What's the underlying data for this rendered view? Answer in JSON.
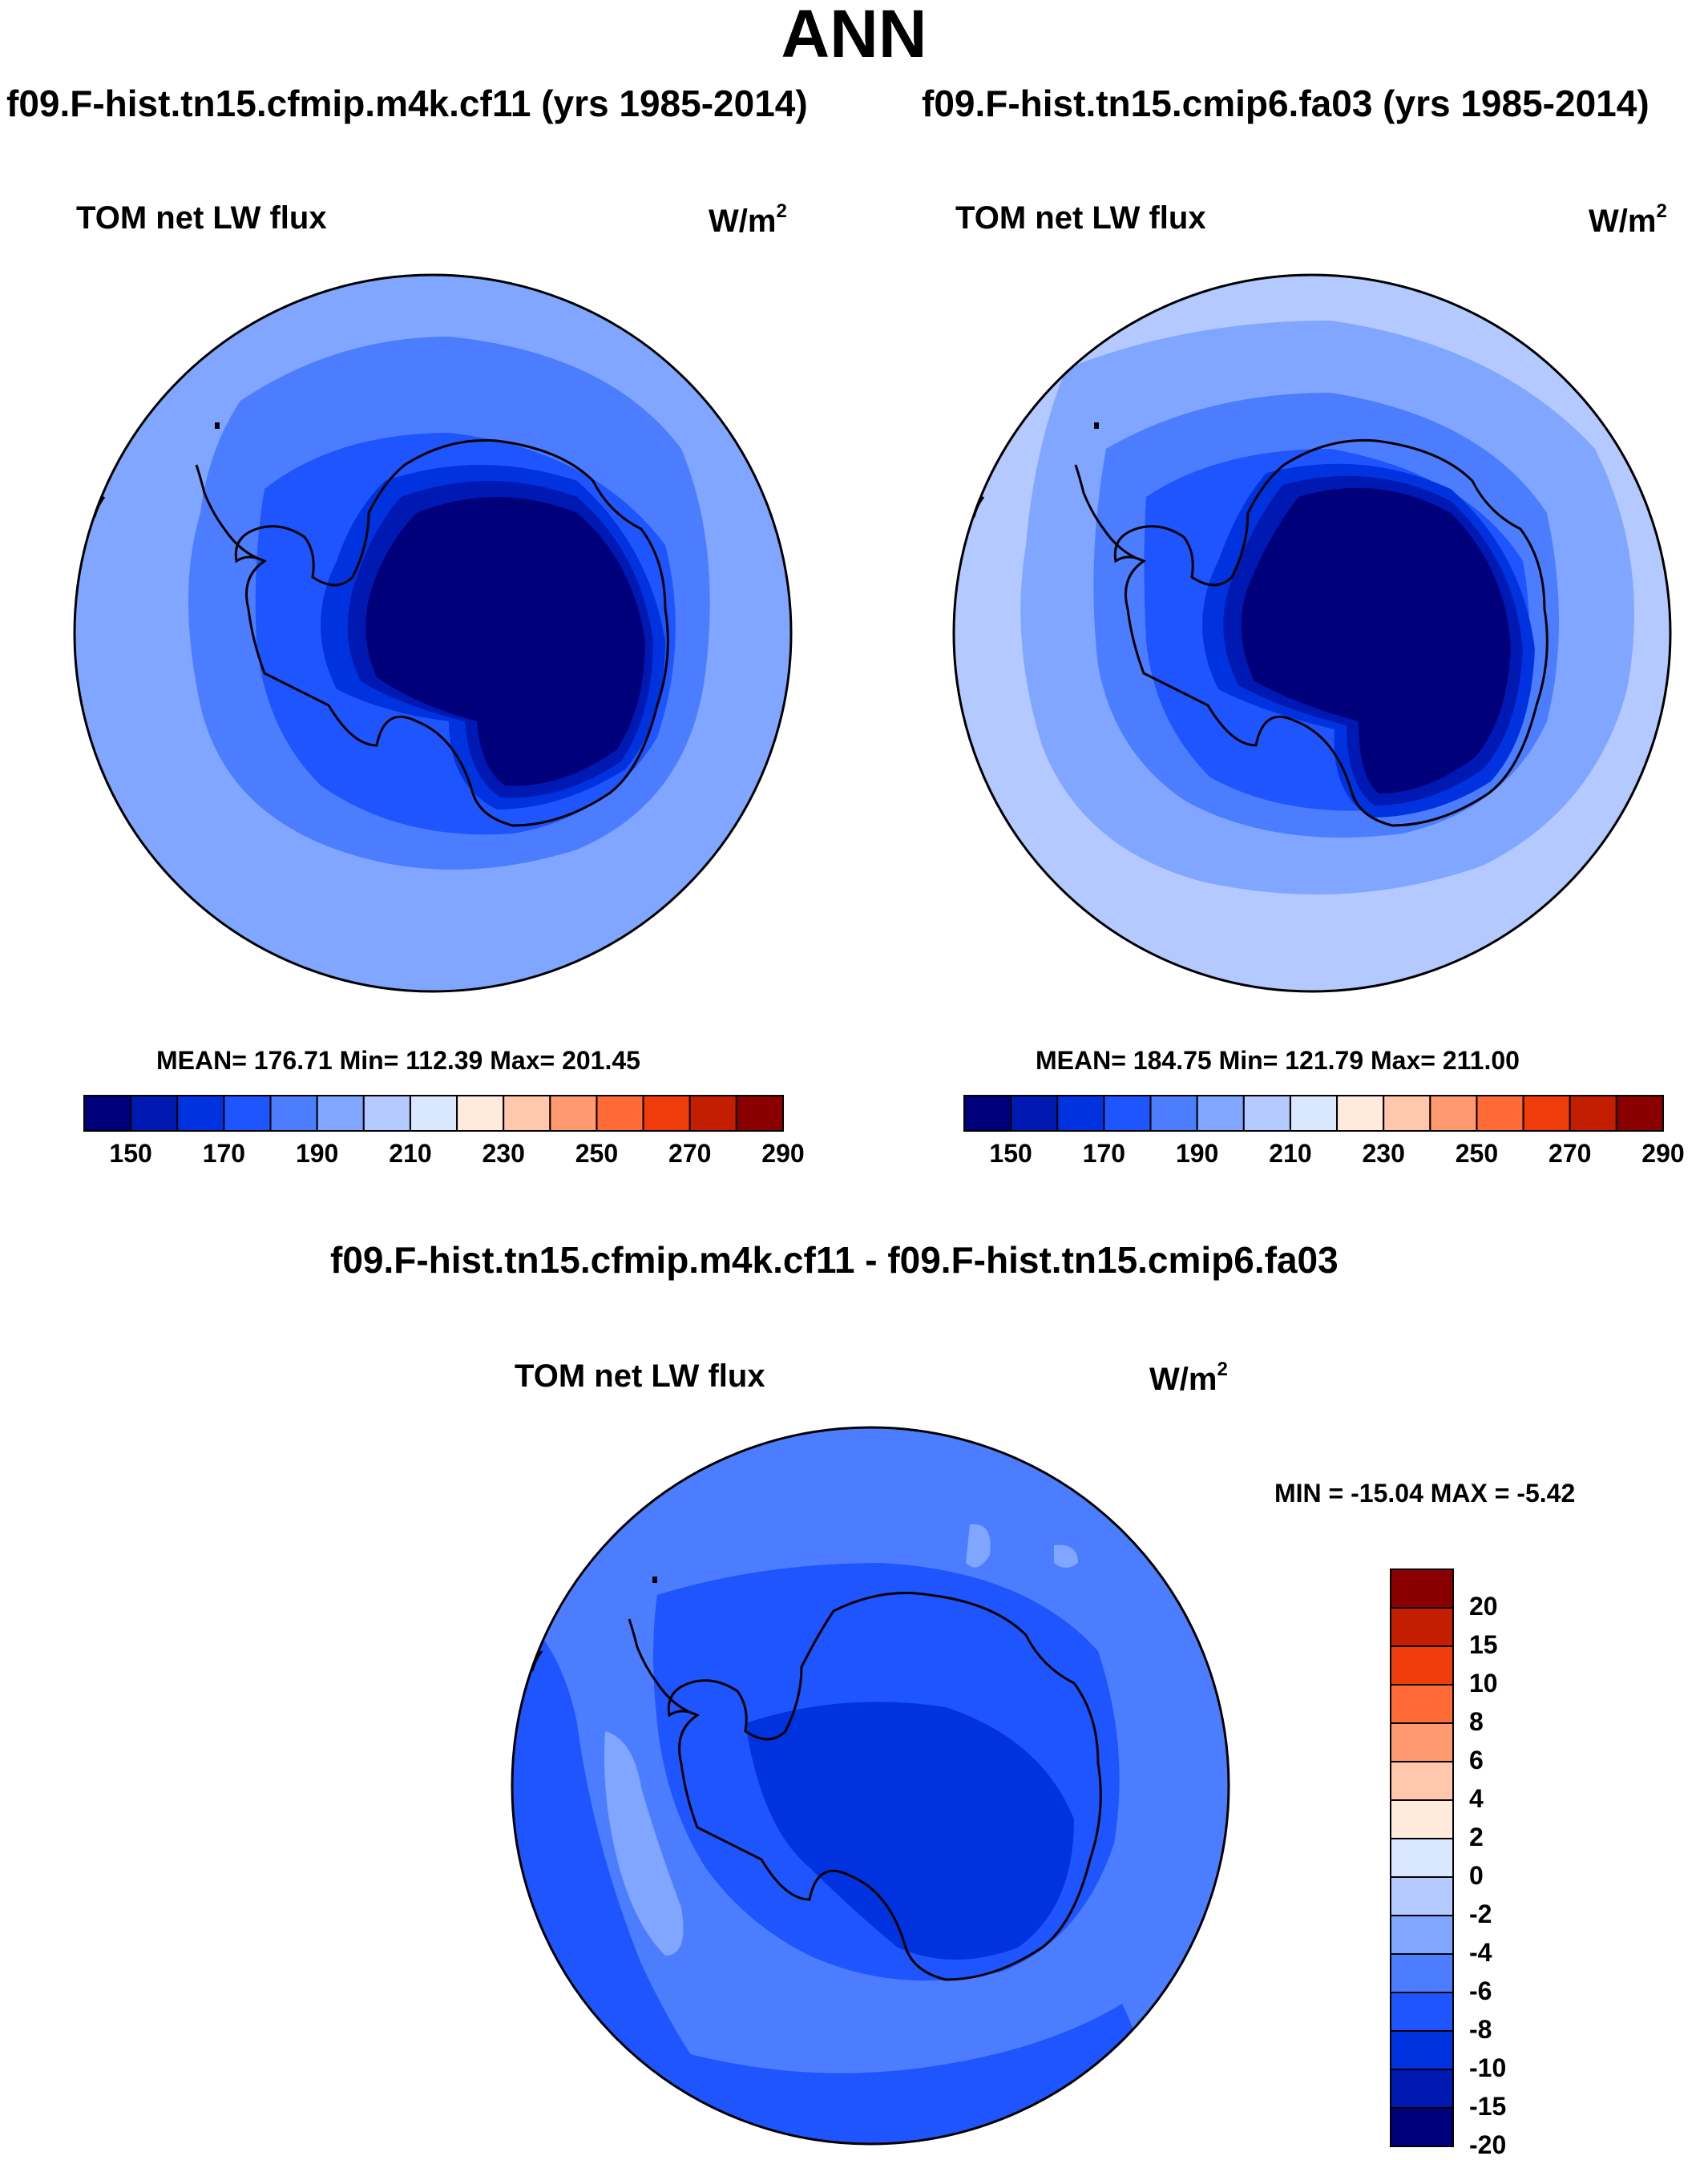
{
  "season": "ANN",
  "variable": "TOM net LW flux",
  "units": "W/m",
  "units_exp": "2",
  "panels": [
    {
      "case_title": "f09.F-hist.tn15.cfmip.m4k.cf11 (yrs 1985-2014)",
      "stats": "MEAN= 176.71  Min= 112.39  Max= 201.45"
    },
    {
      "case_title": "f09.F-hist.tn15.cmip6.fa03 (yrs 1985-2014)",
      "stats": "MEAN= 184.75  Min= 121.79  Max= 211.00"
    }
  ],
  "diff_panel": {
    "title": "f09.F-hist.tn15.cfmip.m4k.cf11 - f09.F-hist.tn15.cmip6.fa03",
    "stats": "MIN = -15.04 MAX =  -5.42"
  },
  "colorbar": {
    "colors": [
      "#00007a",
      "#0019b3",
      "#0033e0",
      "#1f55ff",
      "#4d7dff",
      "#80a6ff",
      "#b3c9ff",
      "#d9e8ff",
      "#ffeadb",
      "#ffc8ad",
      "#ff9a70",
      "#ff6a36",
      "#f03c0a",
      "#c41e02",
      "#8a0000"
    ],
    "tick_labels": [
      "150",
      "170",
      "190",
      "210",
      "230",
      "250",
      "270",
      "290"
    ]
  },
  "diff_colorbar": {
    "colors": [
      "#8a0000",
      "#c41e02",
      "#f03c0a",
      "#ff6a36",
      "#ff9a70",
      "#ffc8ad",
      "#ffeadb",
      "#d9e8ff",
      "#b3c9ff",
      "#80a6ff",
      "#4d7dff",
      "#1f55ff",
      "#0033e0",
      "#0019b3",
      "#00007a"
    ],
    "tick_labels": [
      "20",
      "15",
      "10",
      "8",
      "6",
      "4",
      "2",
      "0",
      "-2",
      "-4",
      "-6",
      "-8",
      "-10",
      "-15",
      "-20"
    ]
  },
  "chart_data": [
    {
      "type": "heatmap",
      "projection": "south-polar-stereographic",
      "title": "TOM net LW flux",
      "subtitle": "f09.F-hist.tn15.cfmip.m4k.cf11 (yrs 1985-2014)",
      "units": "W/m^2",
      "mean": 176.71,
      "min": 112.39,
      "max": 201.45,
      "contour_levels": [
        150,
        160,
        170,
        180,
        190,
        200,
        210,
        220,
        230,
        240,
        250,
        260,
        270,
        280,
        290
      ]
    },
    {
      "type": "heatmap",
      "projection": "south-polar-stereographic",
      "title": "TOM net LW flux",
      "subtitle": "f09.F-hist.tn15.cmip6.fa03 (yrs 1985-2014)",
      "units": "W/m^2",
      "mean": 184.75,
      "min": 121.79,
      "max": 211.0,
      "contour_levels": [
        150,
        160,
        170,
        180,
        190,
        200,
        210,
        220,
        230,
        240,
        250,
        260,
        270,
        280,
        290
      ]
    },
    {
      "type": "heatmap",
      "projection": "south-polar-stereographic",
      "title": "TOM net LW flux",
      "subtitle": "f09.F-hist.tn15.cfmip.m4k.cf11 - f09.F-hist.tn15.cmip6.fa03",
      "units": "W/m^2",
      "min": -15.04,
      "max": -5.42,
      "contour_levels": [
        -20,
        -15,
        -10,
        -8,
        -6,
        -4,
        -2,
        0,
        2,
        4,
        6,
        8,
        10,
        15,
        20
      ]
    }
  ]
}
